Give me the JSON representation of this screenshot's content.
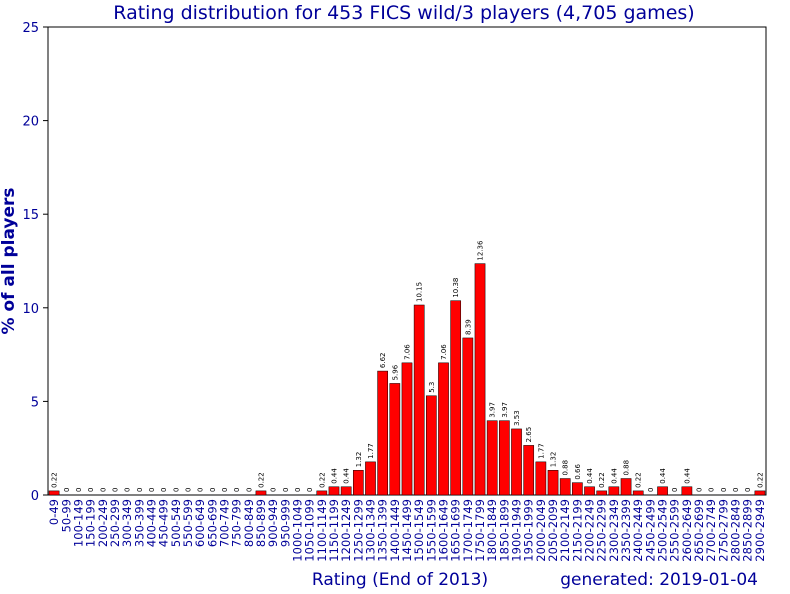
{
  "chart_data": {
    "type": "bar",
    "title": "Rating distribution for 453 FICS wild/3 players (4,705 games)",
    "xlabel": "Rating (End of 2013)",
    "ylabel": "% of all players",
    "footer": "generated: 2019-01-04",
    "ylim": [
      0,
      25
    ],
    "yticks": [
      0,
      5,
      10,
      15,
      20,
      25
    ],
    "grid": false,
    "categories": [
      "0-49",
      "50-99",
      "100-149",
      "150-199",
      "200-249",
      "250-299",
      "300-349",
      "350-399",
      "400-449",
      "450-499",
      "500-549",
      "550-599",
      "600-649",
      "650-699",
      "700-749",
      "750-799",
      "800-849",
      "850-899",
      "900-949",
      "950-999",
      "1000-1049",
      "1050-1099",
      "1100-1149",
      "1150-1199",
      "1200-1249",
      "1250-1299",
      "1300-1349",
      "1350-1399",
      "1400-1449",
      "1450-1499",
      "1500-1549",
      "1550-1599",
      "1600-1649",
      "1650-1699",
      "1700-1749",
      "1750-1799",
      "1800-1849",
      "1850-1899",
      "1900-1949",
      "1950-1999",
      "2000-2049",
      "2050-2099",
      "2100-2149",
      "2150-2199",
      "2200-2249",
      "2250-2299",
      "2300-2349",
      "2350-2399",
      "2400-2449",
      "2450-2499",
      "2500-2549",
      "2550-2599",
      "2600-2649",
      "2650-2699",
      "2700-2749",
      "2750-2799",
      "2800-2849",
      "2850-2899",
      "2900-2949"
    ],
    "values": [
      0.22,
      0,
      0,
      0,
      0,
      0,
      0,
      0,
      0,
      0,
      0,
      0,
      0,
      0,
      0,
      0,
      0,
      0.22,
      0,
      0,
      0,
      0,
      0.22,
      0.44,
      0.44,
      1.32,
      1.77,
      6.62,
      5.96,
      7.06,
      10.15,
      5.3,
      7.06,
      10.38,
      8.39,
      12.36,
      3.97,
      3.97,
      3.53,
      2.65,
      1.77,
      1.32,
      0.88,
      0.66,
      0.44,
      0.22,
      0.44,
      0.88,
      0.22,
      0,
      0.44,
      0,
      0.44,
      0,
      0,
      0,
      0,
      0,
      0.22
    ],
    "colors": {
      "bar": "#ff0000",
      "text": "#000099",
      "axis": "#000000"
    }
  }
}
